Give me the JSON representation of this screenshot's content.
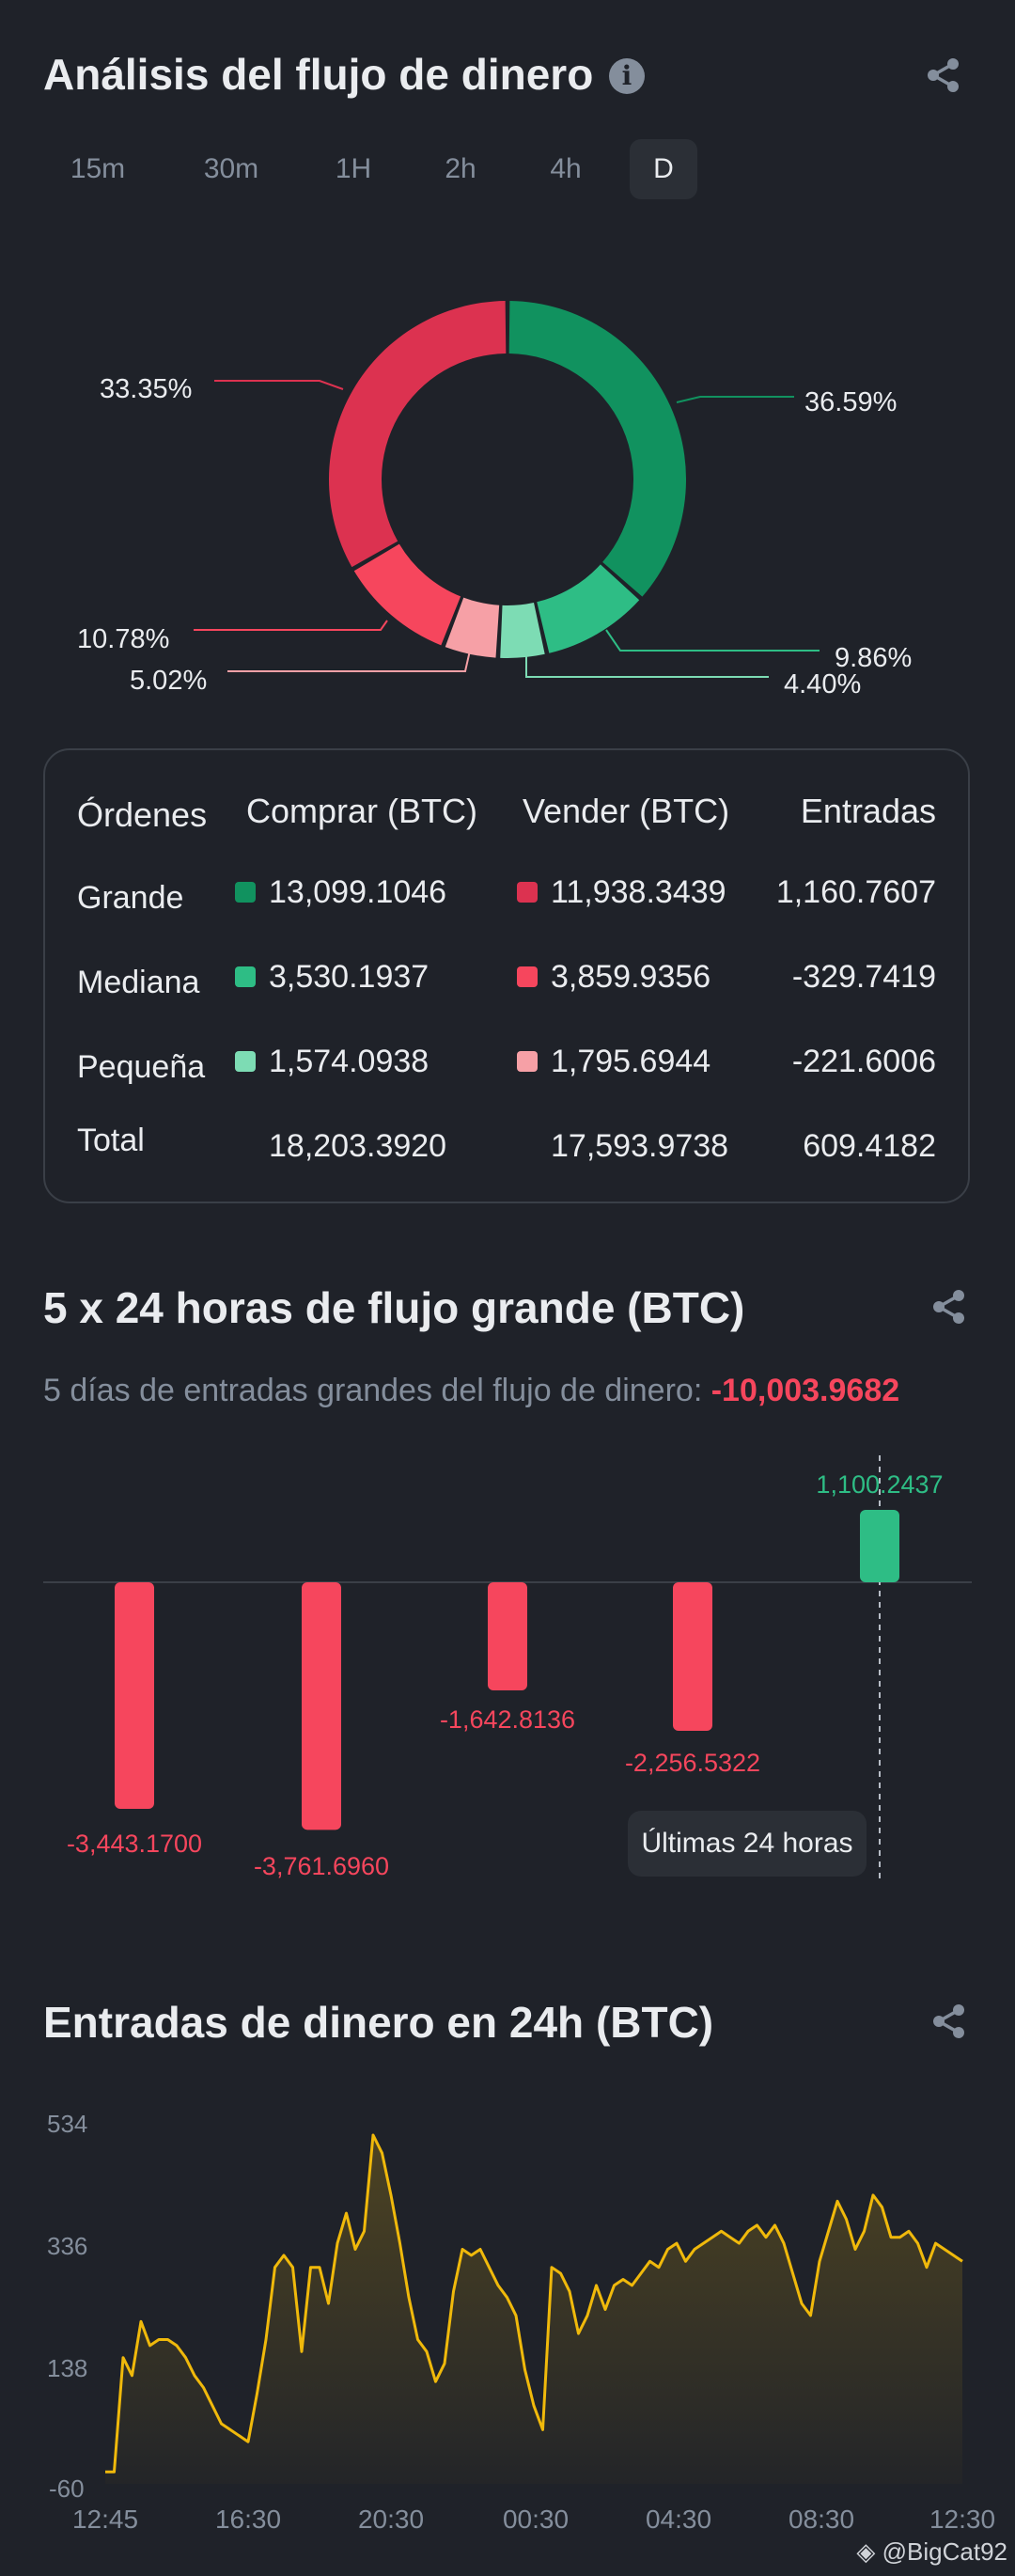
{
  "flow": {
    "title": "Análisis del flujo de dinero",
    "info_icon": "info-icon",
    "tabs": [
      {
        "label": "15m"
      },
      {
        "label": "30m"
      },
      {
        "label": "1H"
      },
      {
        "label": "2h"
      },
      {
        "label": "4h"
      },
      {
        "label": "D",
        "active": true
      }
    ],
    "donut": {
      "slices": [
        {
          "label": "36.59%",
          "value": 36.59,
          "color": "#11925f"
        },
        {
          "label": "9.86%",
          "value": 9.86,
          "color": "#2ebd85"
        },
        {
          "label": "4.40%",
          "value": 4.4,
          "color": "#7ddcb4"
        },
        {
          "label": "5.02%",
          "value": 5.02,
          "color": "#f6a0a6"
        },
        {
          "label": "10.78%",
          "value": 10.78,
          "color": "#f6465d"
        },
        {
          "label": "33.35%",
          "value": 33.35,
          "color": "#dc3250"
        }
      ]
    },
    "table": {
      "headers": [
        "Órdenes",
        "Comprar (BTC)",
        "Vender (BTC)",
        "Entradas"
      ],
      "rows": [
        {
          "name": "Grande",
          "buy": "13,099.1046",
          "sell": "11,938.3439",
          "net": "1,160.7607",
          "buy_color": "#11925f",
          "sell_color": "#dc3250"
        },
        {
          "name": "Mediana",
          "buy": "3,530.1937",
          "sell": "3,859.9356",
          "net": "-329.7419",
          "buy_color": "#2ebd85",
          "sell_color": "#f6465d"
        },
        {
          "name": "Pequeña",
          "buy": "1,574.0938",
          "sell": "1,795.6944",
          "net": "-221.6006",
          "buy_color": "#7ddcb4",
          "sell_color": "#f6a0a6"
        }
      ],
      "total": {
        "name": "Total",
        "buy": "18,203.3920",
        "sell": "17,593.9738",
        "net": "609.4182"
      }
    }
  },
  "large": {
    "title": "5 x 24 horas de flujo grande (BTC)",
    "subtitle_label": "5 días de entradas grandes del flujo de dinero:",
    "subtitle_value": "-10,003.9682",
    "pill": "Últimas 24 horas",
    "chart_data": {
      "type": "bar",
      "values": [
        -3443.17,
        -3761.696,
        -1642.8136,
        -2256.5322,
        1100.2437
      ],
      "labels": [
        "-3,443.1700",
        "-3,761.6960",
        "-1,642.8136",
        "-2,256.5322",
        "1,100.2437"
      ],
      "colors": {
        "positive": "#2ebd85",
        "negative": "#f6465d"
      }
    }
  },
  "inflow": {
    "title": "Entradas de dinero en 24h (BTC)",
    "chart_data": {
      "type": "area",
      "y_ticks": [
        "534",
        "336",
        "138",
        "-60"
      ],
      "ylim": [
        -60,
        534
      ],
      "x_ticks": [
        "12:45",
        "16:30",
        "20:30",
        "00:30",
        "04:30",
        "08:30",
        "12:30"
      ],
      "line_color": "#f0b90b",
      "values": [
        -40,
        -40,
        150,
        120,
        210,
        170,
        180,
        180,
        170,
        150,
        120,
        100,
        70,
        40,
        30,
        20,
        10,
        90,
        180,
        300,
        320,
        300,
        160,
        300,
        300,
        240,
        340,
        390,
        330,
        360,
        520,
        490,
        420,
        340,
        250,
        180,
        160,
        110,
        140,
        260,
        330,
        320,
        330,
        300,
        270,
        250,
        220,
        130,
        70,
        30,
        300,
        290,
        260,
        190,
        220,
        270,
        230,
        270,
        280,
        270,
        290,
        310,
        300,
        330,
        340,
        310,
        330,
        340,
        350,
        360,
        350,
        340,
        360,
        370,
        350,
        370,
        340,
        290,
        240,
        220,
        310,
        360,
        410,
        380,
        330,
        360,
        420,
        400,
        350,
        350,
        360,
        340,
        300,
        340,
        330,
        320,
        310
      ]
    },
    "watermark": "@BigCat92"
  },
  "icons": {
    "share": "share-icon"
  }
}
